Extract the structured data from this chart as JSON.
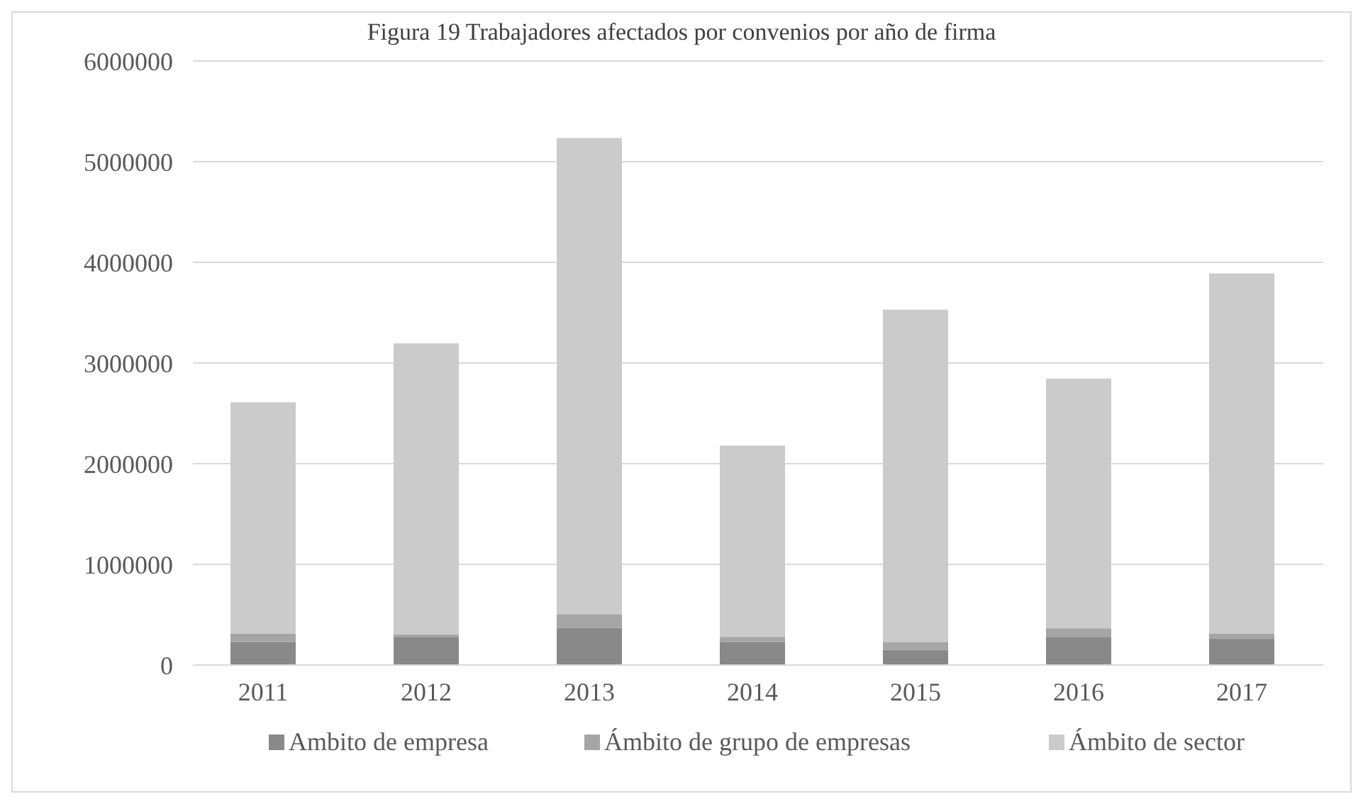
{
  "chart_data": {
    "type": "bar",
    "title": "Figura 19 Trabajadores afectados por convenios por año de firma",
    "categories": [
      "2011",
      "2012",
      "2013",
      "2014",
      "2015",
      "2016",
      "2017"
    ],
    "stacked": true,
    "ylim": [
      0,
      6000000
    ],
    "yticks": [
      0,
      1000000,
      2000000,
      3000000,
      4000000,
      5000000,
      6000000
    ],
    "grid": "y",
    "legend": "bottom",
    "series": [
      {
        "name": "Ambito de empresa",
        "color": "#898989",
        "values": [
          230000,
          280000,
          370000,
          230000,
          150000,
          280000,
          260000
        ]
      },
      {
        "name": "Ámbito de grupo de empresas",
        "color": "#a5a5a5",
        "values": [
          80000,
          25000,
          135000,
          50000,
          80000,
          85000,
          50000
        ]
      },
      {
        "name": "Ámbito de sector",
        "color": "#cbcbcb",
        "values": [
          2300000,
          2890000,
          4730000,
          1900000,
          3300000,
          2480000,
          3580000
        ]
      }
    ]
  }
}
